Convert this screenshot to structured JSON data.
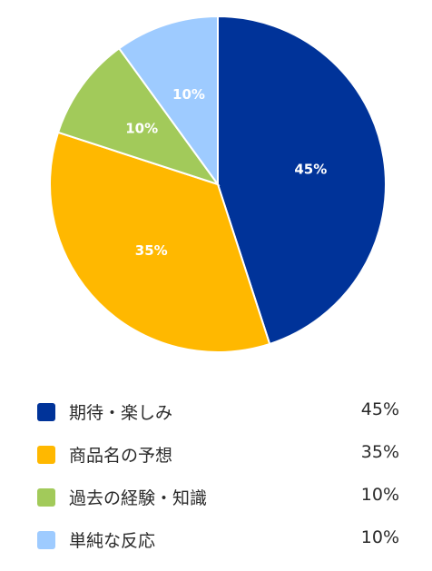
{
  "chart_data": {
    "type": "pie",
    "title": "",
    "slices": [
      {
        "label": "期待・楽しみ",
        "value": 45,
        "value_text": "45%",
        "color": "#003399"
      },
      {
        "label": "商品名の予想",
        "value": 35,
        "value_text": "35%",
        "color": "#FFB800"
      },
      {
        "label": "過去の経験・知識",
        "value": 10,
        "value_text": "10%",
        "color": "#A2CA5A"
      },
      {
        "label": "単純な反応",
        "value": 10,
        "value_text": "10%",
        "color": "#9ECBFF"
      }
    ],
    "start_angle_degrees": 0,
    "direction": "clockwise",
    "legend_position": "bottom"
  }
}
